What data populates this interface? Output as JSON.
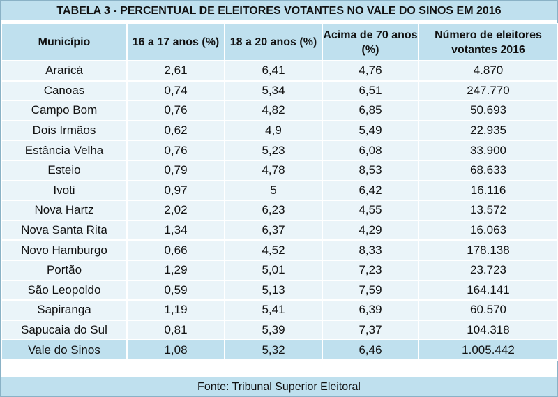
{
  "chart_data": {
    "type": "table",
    "title": "TABELA 3 - PERCENTUAL DE ELEITORES VOTANTES NO VALE DO SINOS EM 2016",
    "columns": [
      "Município",
      "16 a 17 anos (%)",
      "18 a 20 anos (%)",
      "Acima de 70 anos (%)",
      "Número de eleitores votantes 2016"
    ],
    "rows": [
      [
        "Araricá",
        "2,61",
        "6,41",
        "4,76",
        "4.870"
      ],
      [
        "Canoas",
        "0,74",
        "5,34",
        "6,51",
        "247.770"
      ],
      [
        "Campo Bom",
        "0,76",
        "4,82",
        "6,85",
        "50.693"
      ],
      [
        "Dois Irmãos",
        "0,62",
        "4,9",
        "5,49",
        "22.935"
      ],
      [
        "Estância Velha",
        "0,76",
        "5,23",
        "6,08",
        "33.900"
      ],
      [
        "Esteio",
        "0,79",
        "4,78",
        "8,53",
        "68.633"
      ],
      [
        "Ivoti",
        "0,97",
        "5",
        "6,42",
        "16.116"
      ],
      [
        "Nova Hartz",
        "2,02",
        "6,23",
        "4,55",
        "13.572"
      ],
      [
        "Nova Santa Rita",
        "1,34",
        "6,37",
        "4,29",
        "16.063"
      ],
      [
        "Novo Hamburgo",
        "0,66",
        "4,52",
        "8,33",
        "178.138"
      ],
      [
        "Portão",
        "1,29",
        "5,01",
        "7,23",
        "23.723"
      ],
      [
        "São Leopoldo",
        "0,59",
        "5,13",
        "7,59",
        "164.141"
      ],
      [
        "Sapiranga",
        "1,19",
        "5,41",
        "6,39",
        "60.570"
      ],
      [
        "Sapucaia do Sul",
        "0,81",
        "5,39",
        "7,37",
        "104.318"
      ],
      [
        "Vale do Sinos",
        "1,08",
        "5,32",
        "6,46",
        "1.005.442"
      ]
    ],
    "source": "Fonte: Tribunal Superior Eleitoral"
  },
  "colors": {
    "header_bg": "#bfe0ee",
    "row_bg": "#eaf4f9",
    "border": "#ffffff"
  }
}
